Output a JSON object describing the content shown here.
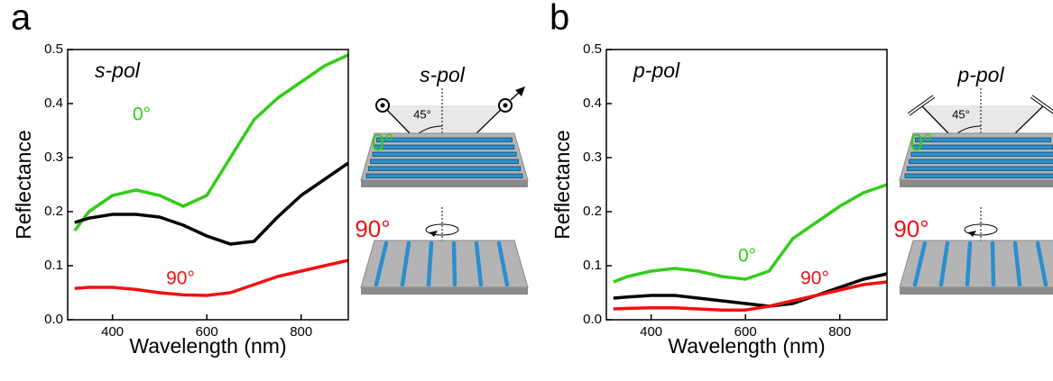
{
  "chart_data": [
    {
      "type": "line",
      "panel_label": "a",
      "pol_label": "s-pol",
      "x_label": "Wavelength (nm)",
      "y_label": "Reflectance",
      "x": [
        320,
        350,
        400,
        450,
        500,
        550,
        600,
        650,
        700,
        750,
        800,
        850,
        900
      ],
      "series": [
        {
          "name": "0°",
          "color": "#33cc1a",
          "values": [
            0.165,
            0.2,
            0.23,
            0.24,
            0.23,
            0.21,
            0.23,
            0.3,
            0.37,
            0.41,
            0.44,
            0.47,
            0.49
          ]
        },
        {
          "color": "#000000",
          "values": [
            0.18,
            0.188,
            0.195,
            0.195,
            0.19,
            0.175,
            0.155,
            0.14,
            0.145,
            0.19,
            0.23,
            0.26,
            0.29
          ]
        },
        {
          "name": "90°",
          "color": "#ee1111",
          "values": [
            0.058,
            0.06,
            0.06,
            0.056,
            0.05,
            0.046,
            0.045,
            0.05,
            0.065,
            0.08,
            0.09,
            0.1,
            0.11
          ]
        }
      ],
      "xlim": [
        305,
        900
      ],
      "xticks": [
        400,
        600,
        800
      ],
      "ylim": [
        0,
        0.5
      ],
      "yticks": [
        {
          "value": 0,
          "label": "0.0"
        },
        0.1,
        0.2,
        0.3,
        0.4,
        0.5
      ]
    },
    {
      "type": "line",
      "panel_label": "b",
      "pol_label": "p-pol",
      "x_label": "Wavelength (nm)",
      "y_label": "Reflectance",
      "x": [
        320,
        350,
        400,
        450,
        500,
        550,
        600,
        650,
        700,
        750,
        800,
        850,
        900
      ],
      "series": [
        {
          "name": "0°",
          "color": "#33cc1a",
          "values": [
            0.07,
            0.08,
            0.09,
            0.095,
            0.09,
            0.08,
            0.075,
            0.09,
            0.15,
            0.18,
            0.21,
            0.235,
            0.25
          ]
        },
        {
          "color": "#000000",
          "values": [
            0.04,
            0.042,
            0.045,
            0.045,
            0.04,
            0.035,
            0.03,
            0.025,
            0.03,
            0.045,
            0.06,
            0.075,
            0.085
          ]
        },
        {
          "name": "90°",
          "color": "#ee1111",
          "values": [
            0.02,
            0.021,
            0.022,
            0.022,
            0.02,
            0.018,
            0.018,
            0.025,
            0.035,
            0.045,
            0.055,
            0.065,
            0.07
          ]
        }
      ],
      "xlim": [
        305,
        900
      ],
      "xticks": [
        400,
        600,
        800
      ],
      "ylim": [
        0,
        0.5
      ],
      "yticks": [
        {
          "value": 0,
          "label": "0.0"
        },
        0.1,
        0.2,
        0.3,
        0.4,
        0.5
      ]
    }
  ],
  "schematics": [
    {
      "pol": "s-pol",
      "angle": "45°",
      "rot0": "0°",
      "rot90": "90°"
    },
    {
      "pol": "p-pol",
      "angle": "45°",
      "rot0": "0°",
      "rot90": "90°"
    }
  ]
}
